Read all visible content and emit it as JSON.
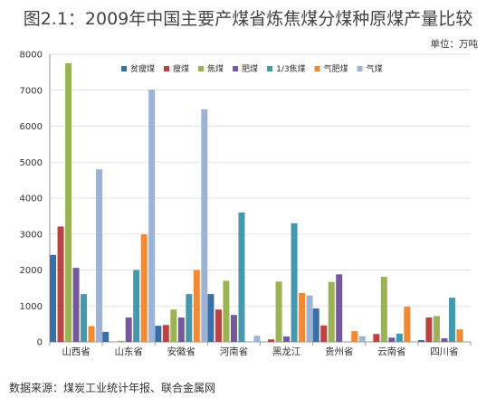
{
  "title": "图2.1：2009年中国主要产煤省炼焦煤分煤种原煤产量比较",
  "unit": "单位：万吨",
  "source": "数据来源：煤炭工业统计年报、联合金属网",
  "chart_data": {
    "type": "bar",
    "title": "图2.1：2009年中国主要产煤省炼焦煤分煤种原煤产量比较",
    "ylim": [
      0,
      8000
    ],
    "yticks": [
      0,
      1000,
      2000,
      3000,
      4000,
      5000,
      6000,
      7000,
      8000
    ],
    "grid": true,
    "legend_position": "top",
    "categories": [
      "山西省",
      "山东省",
      "安徽省",
      "河南省",
      "黑龙江",
      "贵州省",
      "云南省",
      "四川省"
    ],
    "series": [
      {
        "name": "贫瘦煤",
        "color": "#3a6ea8",
        "values": [
          2420,
          280,
          450,
          1330,
          0,
          930,
          0,
          50
        ]
      },
      {
        "name": "瘦煤",
        "color": "#b94444",
        "values": [
          3210,
          0,
          470,
          900,
          70,
          460,
          220,
          680
        ]
      },
      {
        "name": "焦煤",
        "color": "#9bb453",
        "values": [
          7750,
          30,
          900,
          1700,
          1680,
          1670,
          1810,
          720
        ]
      },
      {
        "name": "肥煤",
        "color": "#7458a0",
        "values": [
          2060,
          680,
          680,
          750,
          150,
          1880,
          120,
          100
        ]
      },
      {
        "name": "1/3焦煤",
        "color": "#4499ae",
        "values": [
          1330,
          2000,
          1330,
          3600,
          3300,
          0,
          230,
          1230
        ]
      },
      {
        "name": "气肥煤",
        "color": "#ef8a36",
        "values": [
          440,
          2990,
          2000,
          0,
          1360,
          300,
          980,
          350
        ]
      },
      {
        "name": "气煤",
        "color": "#9db3d6",
        "values": [
          4800,
          7020,
          6470,
          170,
          1290,
          160,
          0,
          0
        ]
      }
    ]
  }
}
